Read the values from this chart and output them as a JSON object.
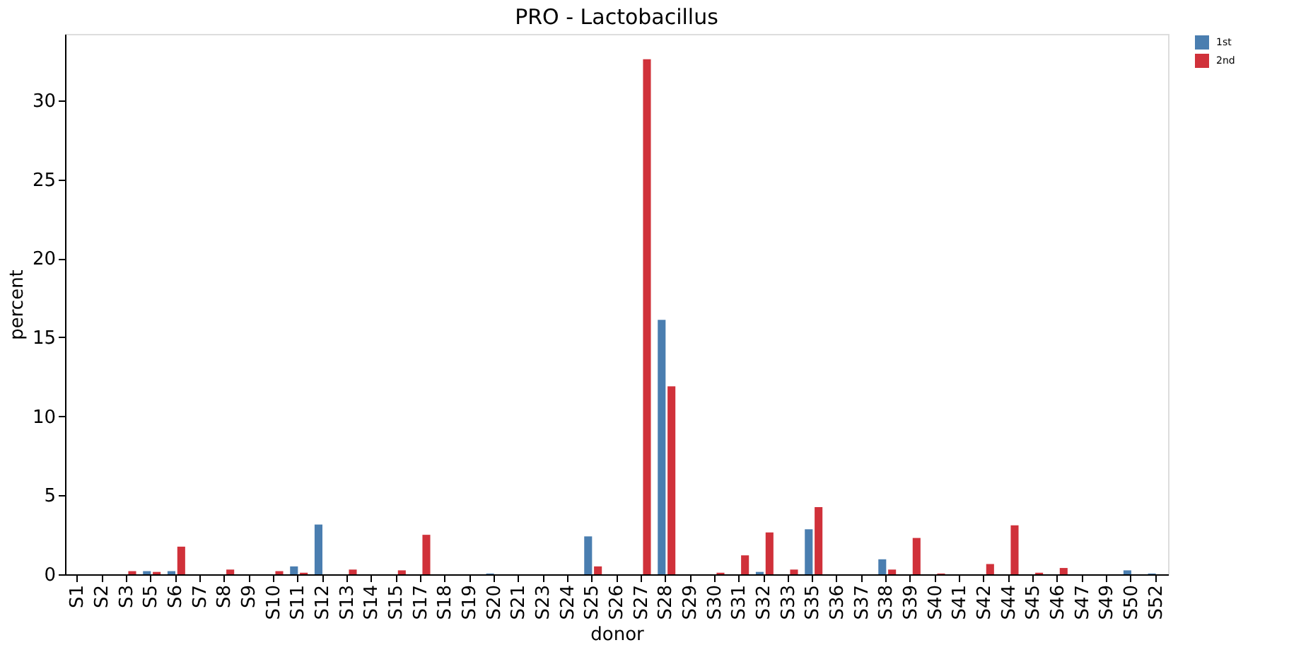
{
  "chart_data": {
    "type": "bar",
    "title": "PRO - Lactobacillus",
    "xlabel": "donor",
    "ylabel": "percent",
    "categories": [
      "S1",
      "S2",
      "S3",
      "S5",
      "S6",
      "S7",
      "S8",
      "S9",
      "S10",
      "S11",
      "S12",
      "S13",
      "S14",
      "S15",
      "S17",
      "S18",
      "S19",
      "S20",
      "S21",
      "S23",
      "S24",
      "S25",
      "S26",
      "S27",
      "S28",
      "S29",
      "S30",
      "S31",
      "S32",
      "S33",
      "S35",
      "S36",
      "S37",
      "S38",
      "S39",
      "S40",
      "S41",
      "S42",
      "S44",
      "S45",
      "S46",
      "S47",
      "S49",
      "S50",
      "S52"
    ],
    "series": [
      {
        "name": "1st",
        "color": "#4a7eb0",
        "values": [
          0,
          0,
          0,
          0.2,
          0.2,
          0,
          0,
          0,
          0,
          0.5,
          3.15,
          0,
          0,
          0,
          0,
          0,
          0,
          0.05,
          0,
          0,
          0,
          2.4,
          0,
          0,
          16.1,
          0,
          0,
          0,
          0.15,
          0,
          2.85,
          0,
          0,
          0.95,
          0,
          0,
          0,
          0,
          0,
          0,
          0,
          0,
          0,
          0.25,
          0.05
        ]
      },
      {
        "name": "2nd",
        "color": "#d0313a",
        "values": [
          0,
          0,
          0.2,
          0.15,
          1.75,
          0,
          0.3,
          0,
          0.2,
          0.1,
          0,
          0.3,
          0,
          0.25,
          2.5,
          0,
          0,
          0,
          0,
          0,
          0,
          0.5,
          0,
          32.6,
          11.9,
          0,
          0.1,
          1.2,
          2.65,
          0.3,
          4.25,
          0,
          0,
          0.3,
          2.3,
          0.05,
          0,
          0.65,
          3.1,
          0.1,
          0.4,
          0,
          0,
          0,
          0
        ]
      }
    ],
    "ylim": [
      0,
      34.2
    ],
    "yticks": [
      0,
      5,
      10,
      15,
      20,
      25,
      30
    ],
    "grid": false,
    "legend": "top right"
  }
}
